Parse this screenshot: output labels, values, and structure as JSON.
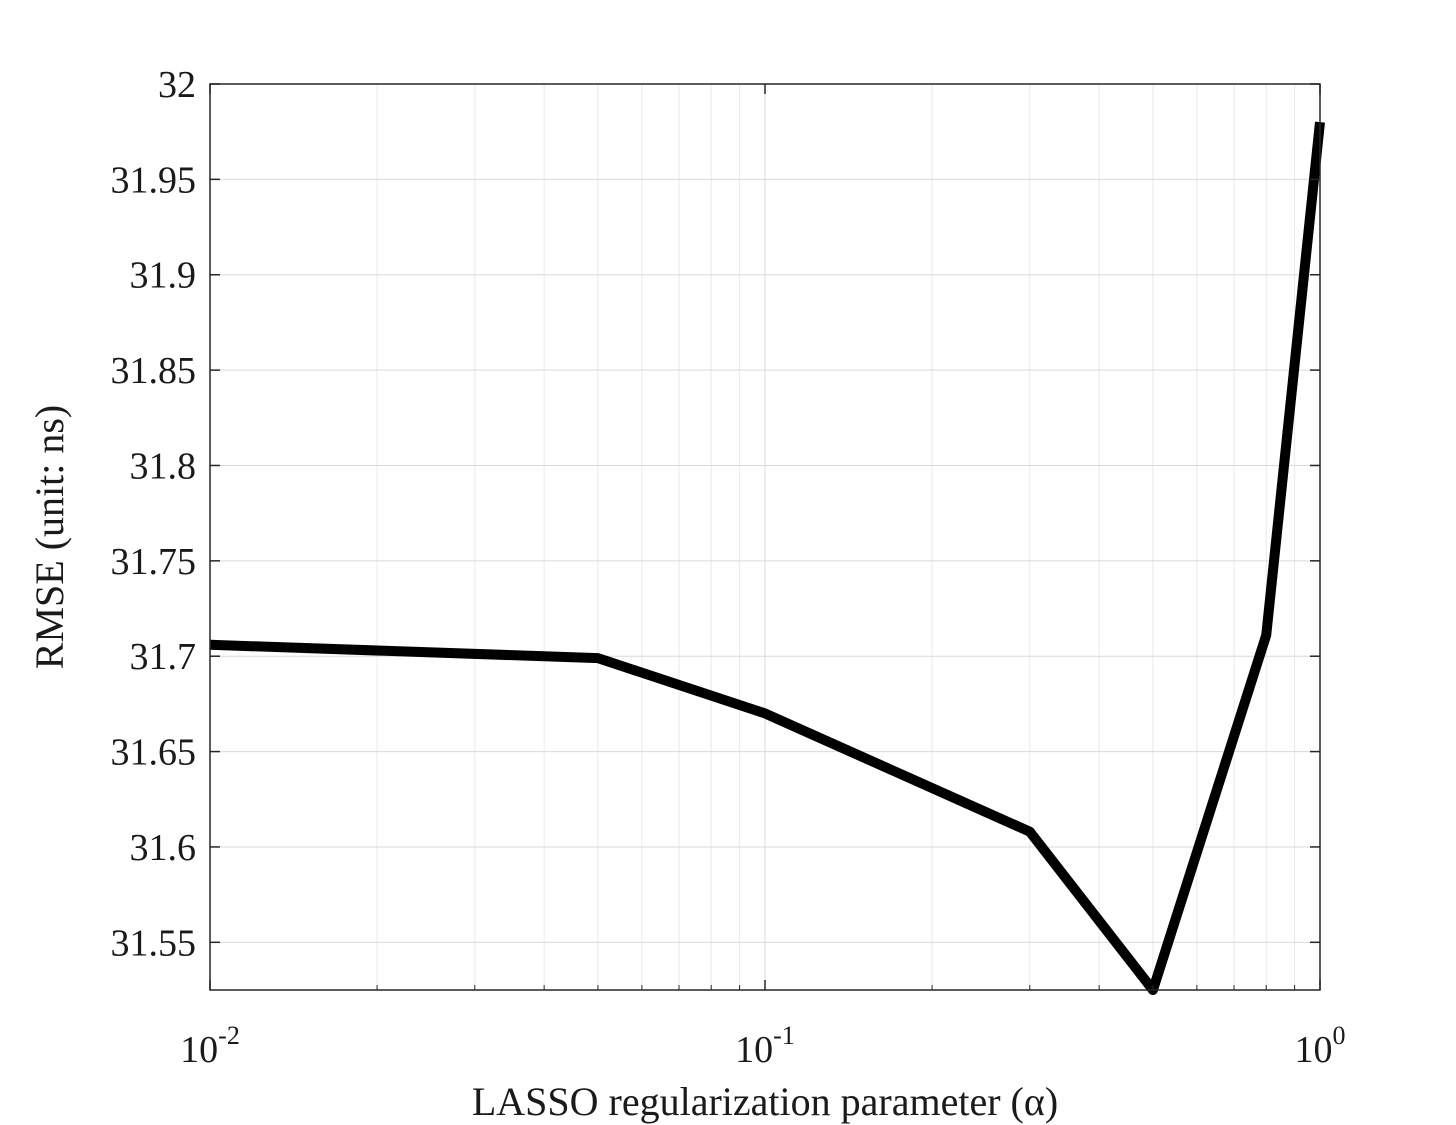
{
  "chart_data": {
    "type": "line",
    "title": "",
    "xlabel": "LASSO regularization parameter (α)",
    "ylabel": "RMSE (unit: ns)",
    "xscale": "log",
    "xlim": [
      0.01,
      1
    ],
    "ylim": [
      31.525,
      32
    ],
    "grid": true,
    "legend": "none",
    "line_color": "#000000",
    "x_ticks": [
      {
        "value": 0.01,
        "base": "10",
        "exp": "-2"
      },
      {
        "value": 0.1,
        "base": "10",
        "exp": "-1"
      },
      {
        "value": 1,
        "base": "10",
        "exp": "0"
      }
    ],
    "y_ticks": [
      {
        "value": 31.55,
        "label": "31.55"
      },
      {
        "value": 31.6,
        "label": "31.6"
      },
      {
        "value": 31.65,
        "label": "31.65"
      },
      {
        "value": 31.7,
        "label": "31.7"
      },
      {
        "value": 31.75,
        "label": "31.75"
      },
      {
        "value": 31.8,
        "label": "31.8"
      },
      {
        "value": 31.85,
        "label": "31.85"
      },
      {
        "value": 31.9,
        "label": "31.9"
      },
      {
        "value": 31.95,
        "label": "31.95"
      },
      {
        "value": 32,
        "label": "32"
      }
    ],
    "series": [
      {
        "x": [
          0.01,
          0.05,
          0.1,
          0.3,
          0.5,
          0.8,
          1
        ],
        "y": [
          31.706,
          31.699,
          31.67,
          31.608,
          31.525,
          31.711,
          31.98
        ]
      }
    ]
  }
}
